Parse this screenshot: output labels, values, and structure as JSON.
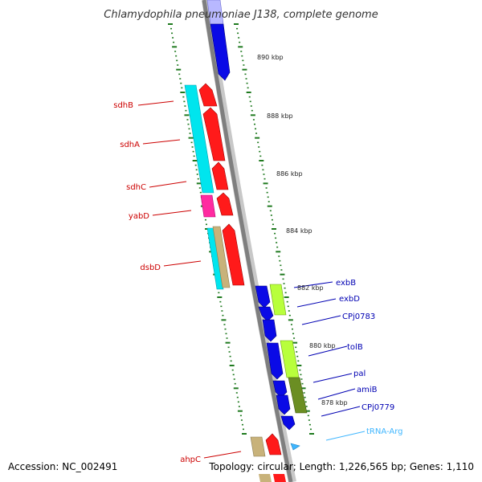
{
  "title": "Chlamydophila pneumoniae J138, complete genome",
  "footer": {
    "accession": "Accession: NC_002491",
    "topology": "Topology: circular; Length: 1,226,565 bp; Genes: 1,110"
  },
  "colors": {
    "backbone": "#808080",
    "backbone_shadow": "#bdbdbd",
    "tick": "#1f7a1f",
    "left_label": "#cc0000",
    "right_label": "#0000b3",
    "trna": "#3fb6ff",
    "kbp_text": "#222222"
  },
  "scale_labels": [
    {
      "kbp": 890,
      "text": "890 kbp"
    },
    {
      "kbp": 888,
      "text": "888 kbp"
    },
    {
      "kbp": 886,
      "text": "886 kbp"
    },
    {
      "kbp": 884,
      "text": "884 kbp"
    },
    {
      "kbp": 882,
      "text": "882 kbp"
    },
    {
      "kbp": 880,
      "text": "880 kbp"
    },
    {
      "kbp": 878,
      "text": "878 kbp"
    }
  ],
  "left_labels": [
    "sdhB",
    "sdhA",
    "sdhC",
    "yabD",
    "dsbD",
    "ahpC"
  ],
  "right_labels": [
    "exbB",
    "exbD",
    "CPj0783",
    "tolB",
    "pal",
    "amiB",
    "CPj0779",
    "tRNA-Arg"
  ]
}
